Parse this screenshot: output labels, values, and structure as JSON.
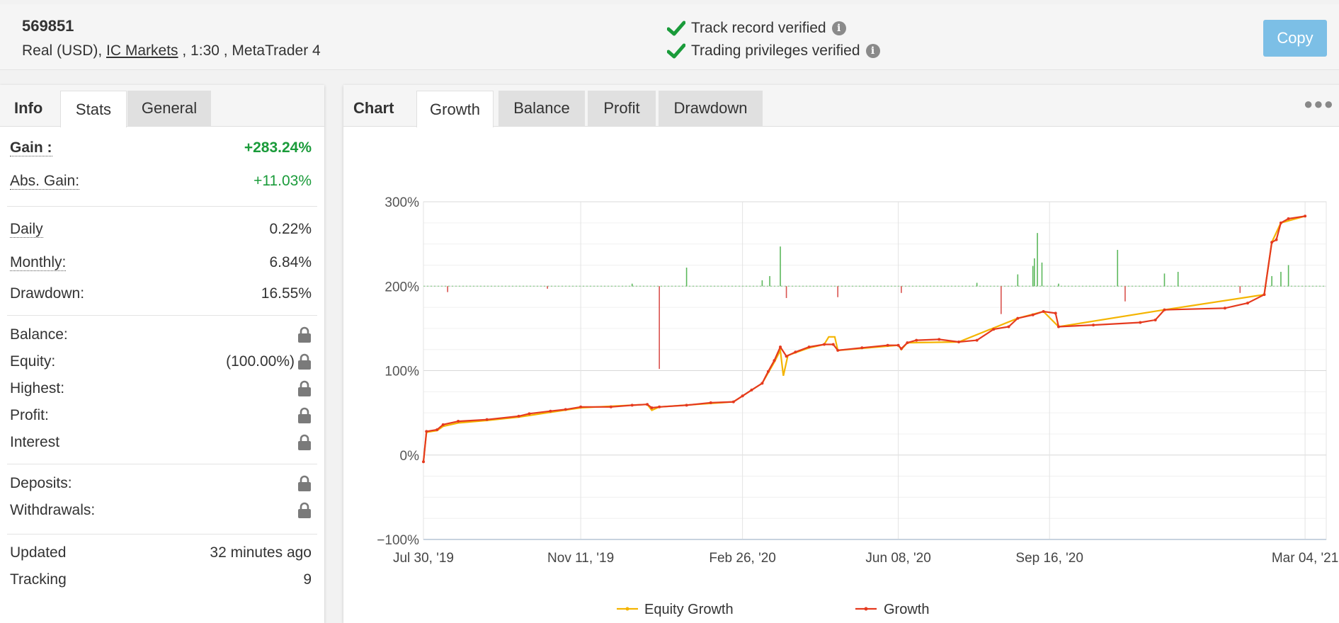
{
  "header": {
    "account_id": "569851",
    "account_type": "Real (USD), ",
    "broker": "IC Markets",
    "account_rest": " , 1:30 , MetaTrader 4",
    "verify_track": "Track record verified",
    "verify_trading": "Trading privileges verified",
    "copy_label": "Copy"
  },
  "left_tabs": {
    "label": "Info",
    "active": "Stats",
    "inactive": "General"
  },
  "stats": {
    "gain_label": "Gain :",
    "gain_value": "+283.24%",
    "abs_gain_label": "Abs. Gain:",
    "abs_gain_value": "+11.03%",
    "daily_label": "Daily",
    "daily_value": "0.22%",
    "monthly_label": "Monthly:",
    "monthly_value": "6.84%",
    "drawdown_label": "Drawdown:",
    "drawdown_value": "16.55%",
    "balance_label": "Balance:",
    "equity_label": "Equity:",
    "equity_value": "(100.00%)",
    "highest_label": "Highest:",
    "profit_label": "Profit:",
    "interest_label": "Interest",
    "deposits_label": "Deposits:",
    "withdrawals_label": "Withdrawals:",
    "updated_label": "Updated",
    "updated_value": "32 minutes ago",
    "tracking_label": "Tracking",
    "tracking_value": "9"
  },
  "chart_tabs": {
    "label": "Chart",
    "growth": "Growth",
    "balance": "Balance",
    "profit": "Profit",
    "drawdown": "Drawdown"
  },
  "colors": {
    "growth": "#e53a1f",
    "equity": "#f4b400",
    "bar_pos": "#5cb85c",
    "bar_neg": "#d9534f",
    "copy_btn": "#7cbfe6",
    "check": "#1a9b3a"
  },
  "chart_data": {
    "type": "line",
    "title": "",
    "y_tick_labels": [
      "300%",
      "200%",
      "100%",
      "0%",
      "−100%"
    ],
    "y_ticks": [
      300,
      200,
      100,
      0,
      -100
    ],
    "ylim": [
      -100,
      300
    ],
    "x_tick_labels": [
      "Jul 30, '19",
      "Nov 11, '19",
      "Feb 26, '20",
      "Jun 08, '20",
      "Sep 16, '20",
      "Mar 04, '21"
    ],
    "x_ticks": [
      "2019-07-30",
      "2019-11-11",
      "2020-02-26",
      "2020-06-08",
      "2020-09-16",
      "2021-03-04"
    ],
    "x_range": [
      "2019-07-30",
      "2021-03-18"
    ],
    "legend": [
      "Equity Growth",
      "Growth"
    ],
    "legend_position": "bottom",
    "series": [
      {
        "name": "Growth",
        "points": [
          [
            "2019-07-30",
            -8
          ],
          [
            "2019-08-01",
            28
          ],
          [
            "2019-08-08",
            30
          ],
          [
            "2019-08-12",
            36
          ],
          [
            "2019-08-22",
            40
          ],
          [
            "2019-09-10",
            42
          ],
          [
            "2019-10-01",
            46
          ],
          [
            "2019-10-08",
            49
          ],
          [
            "2019-10-22",
            52
          ],
          [
            "2019-11-01",
            54
          ],
          [
            "2019-11-11",
            57
          ],
          [
            "2019-12-01",
            57
          ],
          [
            "2019-12-15",
            59
          ],
          [
            "2019-12-25",
            60
          ],
          [
            "2019-12-28",
            56
          ],
          [
            "2020-01-02",
            57
          ],
          [
            "2020-01-20",
            59
          ],
          [
            "2020-02-05",
            62
          ],
          [
            "2020-02-20",
            63
          ],
          [
            "2020-02-26",
            70
          ],
          [
            "2020-03-03",
            77
          ],
          [
            "2020-03-10",
            85
          ],
          [
            "2020-03-14",
            99
          ],
          [
            "2020-03-18",
            112
          ],
          [
            "2020-03-22",
            128
          ],
          [
            "2020-03-26",
            117
          ],
          [
            "2020-04-01",
            122
          ],
          [
            "2020-04-10",
            128
          ],
          [
            "2020-04-20",
            131
          ],
          [
            "2020-04-26",
            131
          ],
          [
            "2020-04-29",
            124
          ],
          [
            "2020-05-15",
            127
          ],
          [
            "2020-06-01",
            130
          ],
          [
            "2020-06-08",
            130
          ],
          [
            "2020-06-10",
            126
          ],
          [
            "2020-06-14",
            133
          ],
          [
            "2020-06-20",
            136
          ],
          [
            "2020-07-05",
            137
          ],
          [
            "2020-07-18",
            134
          ],
          [
            "2020-07-30",
            136
          ],
          [
            "2020-08-10",
            149
          ],
          [
            "2020-08-20",
            152
          ],
          [
            "2020-08-26",
            162
          ],
          [
            "2020-09-05",
            166
          ],
          [
            "2020-09-12",
            170
          ],
          [
            "2020-09-20",
            168
          ],
          [
            "2020-09-22",
            152
          ],
          [
            "2020-10-15",
            154
          ],
          [
            "2020-11-15",
            157
          ],
          [
            "2020-11-25",
            160
          ],
          [
            "2020-12-01",
            172
          ],
          [
            "2021-01-10",
            174
          ],
          [
            "2021-01-25",
            180
          ],
          [
            "2021-02-05",
            190
          ],
          [
            "2021-02-10",
            252
          ],
          [
            "2021-02-13",
            255
          ],
          [
            "2021-02-16",
            275
          ],
          [
            "2021-02-21",
            280
          ],
          [
            "2021-03-04",
            283
          ]
        ]
      },
      {
        "name": "Equity Growth",
        "points": [
          [
            "2019-07-30",
            -8
          ],
          [
            "2019-08-01",
            27
          ],
          [
            "2019-08-08",
            29
          ],
          [
            "2019-08-12",
            34
          ],
          [
            "2019-08-22",
            38
          ],
          [
            "2019-09-10",
            41
          ],
          [
            "2019-10-01",
            45
          ],
          [
            "2019-11-11",
            56
          ],
          [
            "2019-12-25",
            60
          ],
          [
            "2019-12-28",
            53
          ],
          [
            "2020-01-02",
            57
          ],
          [
            "2020-02-20",
            63
          ],
          [
            "2020-03-10",
            85
          ],
          [
            "2020-03-18",
            110
          ],
          [
            "2020-03-22",
            124
          ],
          [
            "2020-03-24",
            94
          ],
          [
            "2020-03-27",
            118
          ],
          [
            "2020-04-10",
            127
          ],
          [
            "2020-04-20",
            131
          ],
          [
            "2020-04-23",
            140
          ],
          [
            "2020-04-27",
            140
          ],
          [
            "2020-04-29",
            124
          ],
          [
            "2020-06-08",
            130
          ],
          [
            "2020-06-10",
            125
          ],
          [
            "2020-06-14",
            133
          ],
          [
            "2020-07-18",
            134
          ],
          [
            "2020-08-26",
            162
          ],
          [
            "2020-09-12",
            170
          ],
          [
            "2020-09-22",
            152
          ],
          [
            "2020-12-01",
            172
          ],
          [
            "2021-02-05",
            190
          ],
          [
            "2021-02-10",
            252
          ],
          [
            "2021-02-16",
            275
          ],
          [
            "2021-03-04",
            283
          ]
        ]
      },
      {
        "name": "Daily Change",
        "type": "bar",
        "baseline": 200,
        "points": [
          [
            "2019-08-15",
            -7
          ],
          [
            "2019-10-20",
            -3
          ],
          [
            "2019-12-15",
            3
          ],
          [
            "2020-01-02",
            -98
          ],
          [
            "2020-01-20",
            22
          ],
          [
            "2020-03-10",
            7
          ],
          [
            "2020-03-15",
            12
          ],
          [
            "2020-03-22",
            47
          ],
          [
            "2020-03-26",
            -14
          ],
          [
            "2020-04-29",
            -13
          ],
          [
            "2020-06-10",
            -8
          ],
          [
            "2020-07-30",
            4
          ],
          [
            "2020-08-15",
            -33
          ],
          [
            "2020-08-26",
            14
          ],
          [
            "2020-09-05",
            24
          ],
          [
            "2020-09-06",
            33
          ],
          [
            "2020-09-08",
            63
          ],
          [
            "2020-09-11",
            28
          ],
          [
            "2020-09-22",
            3
          ],
          [
            "2020-10-31",
            43
          ],
          [
            "2020-11-05",
            -18
          ],
          [
            "2020-12-01",
            15
          ],
          [
            "2020-12-10",
            17
          ],
          [
            "2021-01-20",
            -8
          ],
          [
            "2021-02-10",
            12
          ],
          [
            "2021-02-16",
            17
          ],
          [
            "2021-02-21",
            25
          ]
        ]
      }
    ]
  }
}
